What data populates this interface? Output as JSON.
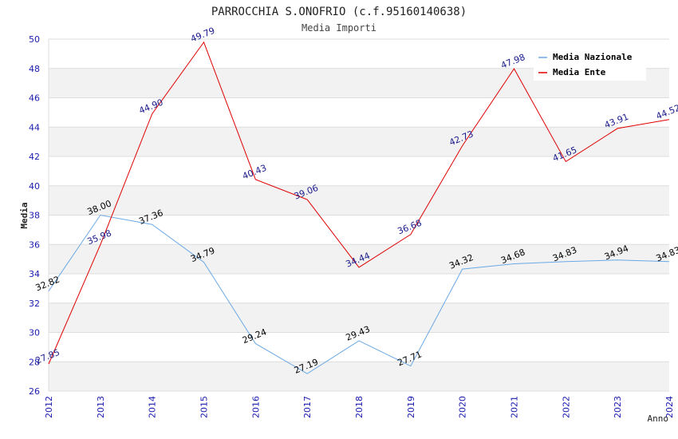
{
  "chart_data": {
    "type": "line",
    "title": "PARROCCHIA S.ONOFRIO (c.f.95160140638)",
    "subtitle": "Media Importi",
    "xlabel": "Anno",
    "ylabel": "Media",
    "ylim": [
      26,
      50
    ],
    "y_ticks": [
      26,
      28,
      30,
      32,
      34,
      36,
      38,
      40,
      42,
      44,
      46,
      48,
      50
    ],
    "grid": true,
    "legend_position": "top-right",
    "categories": [
      "2012",
      "2013",
      "2014",
      "2015",
      "2016",
      "2017",
      "2018",
      "2019",
      "2020",
      "2021",
      "2022",
      "2023",
      "2024"
    ],
    "series": [
      {
        "name": "Media Nazionale",
        "color": "#6aa9e6",
        "label_color": "#000000",
        "values": [
          32.82,
          38.0,
          37.36,
          34.79,
          29.24,
          27.19,
          29.43,
          27.71,
          34.32,
          34.68,
          34.83,
          34.94,
          34.83
        ],
        "labels": [
          "32.82",
          "38.00",
          "37.36",
          "34.79",
          "29.24",
          "27.19",
          "29.43",
          "27.71",
          "34.32",
          "34.68",
          "34.83",
          "34.94",
          "34.83"
        ]
      },
      {
        "name": "Media Ente",
        "color": "#e00000",
        "label_color": "#1a1a8c",
        "values": [
          27.85,
          35.98,
          44.9,
          49.79,
          40.43,
          39.06,
          34.44,
          36.68,
          42.73,
          47.98,
          41.65,
          43.91,
          44.52
        ],
        "labels": [
          "27.85",
          "35.98",
          "44.90",
          "49.79",
          "40.43",
          "39.06",
          "34.44",
          "36.68",
          "42.73",
          "47.98",
          "41.65",
          "43.91",
          "44.52"
        ]
      }
    ],
    "colors": {
      "band": "#f2f2f2",
      "grid": "#dddddd",
      "tick_text": "#1a1ab0"
    }
  }
}
